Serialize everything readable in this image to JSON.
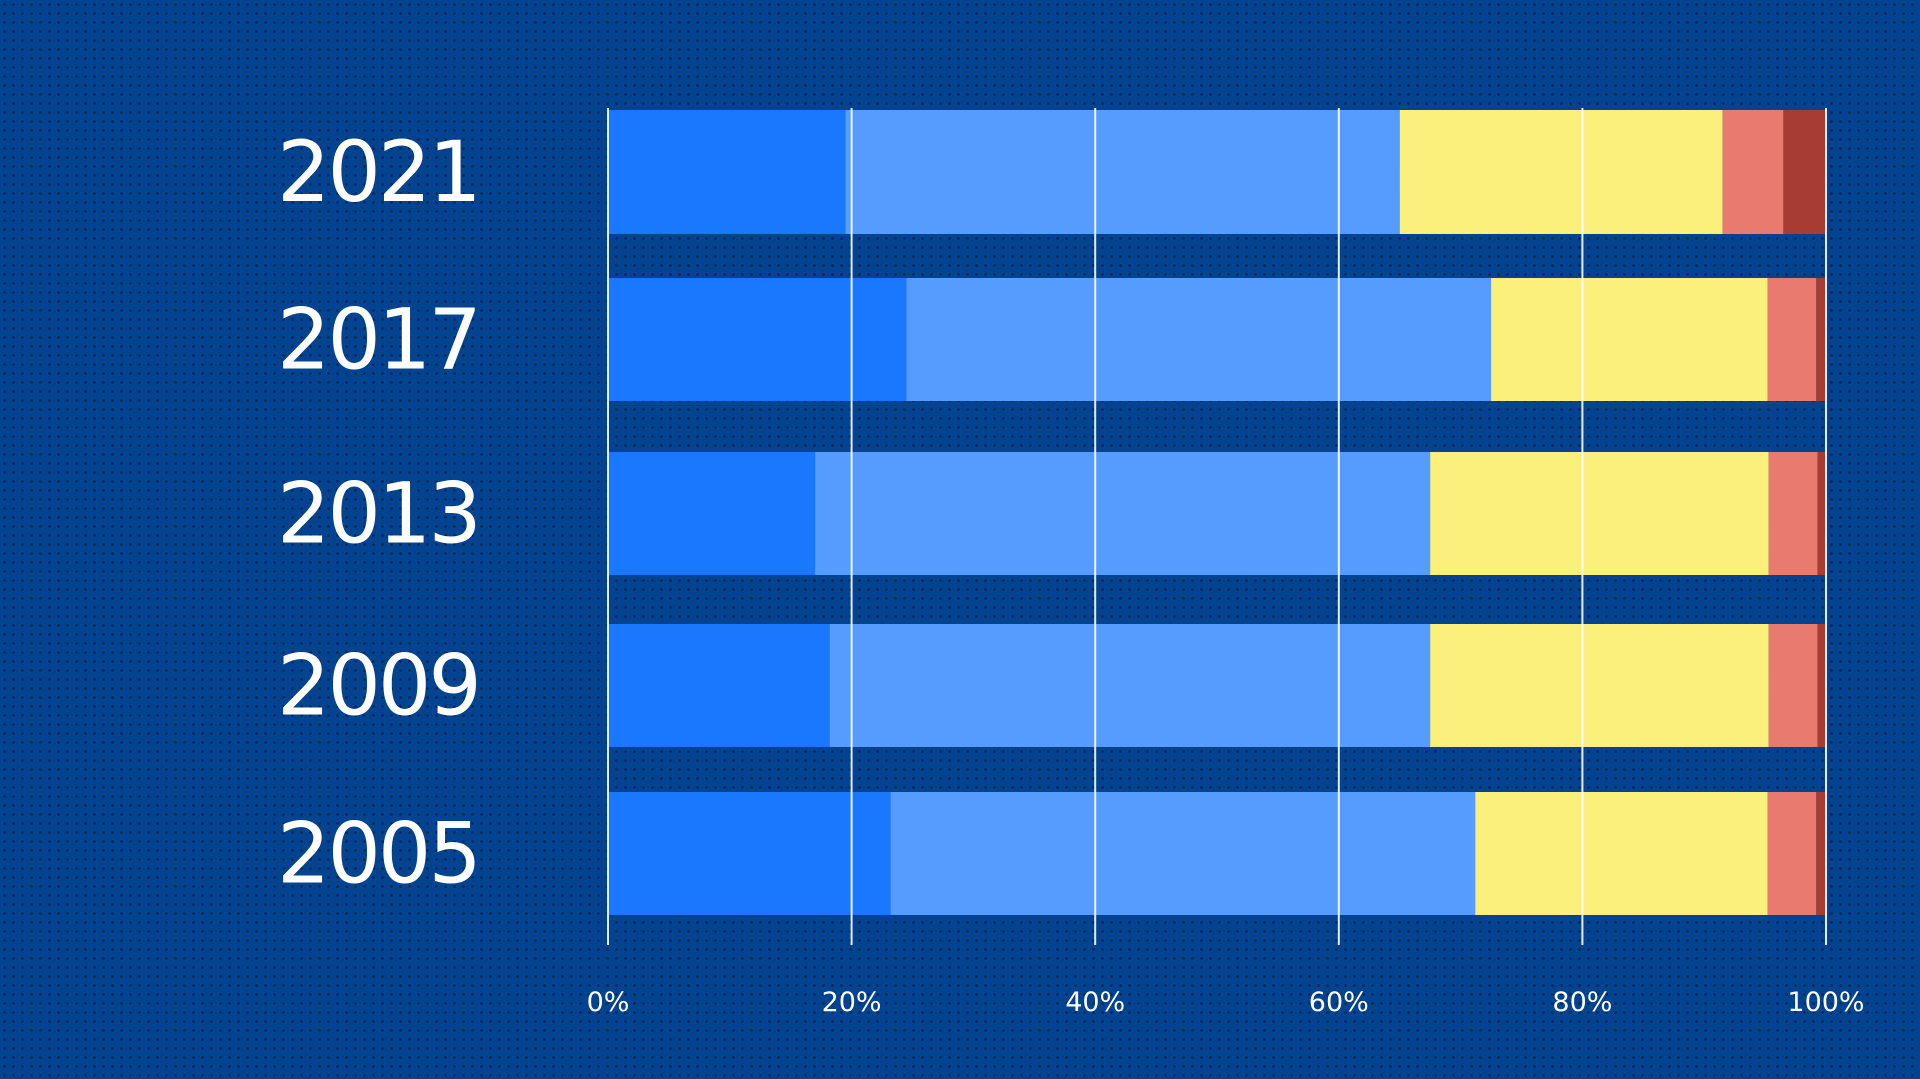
{
  "chart_data": {
    "type": "bar",
    "orientation": "horizontal",
    "stacked": true,
    "normalized": true,
    "categories": [
      "2021",
      "2017",
      "2013",
      "2009",
      "2005"
    ],
    "series": [
      {
        "color": "#1a78fe",
        "values": [
          19.5,
          24.5,
          17,
          18.2,
          23.2
        ]
      },
      {
        "color": "#569bfe",
        "values": [
          45.5,
          48,
          50.5,
          49.3,
          48
        ]
      },
      {
        "color": "#fcf07d",
        "values": [
          26.5,
          22.7,
          27.8,
          27.8,
          24
        ]
      },
      {
        "color": "#e87a70",
        "values": [
          5,
          4,
          4,
          4,
          4
        ]
      },
      {
        "color": "#a73c33",
        "values": [
          3.5,
          0.8,
          0.7,
          0.7,
          0.8
        ]
      }
    ],
    "xlim": [
      0,
      100
    ],
    "xticks": [
      "0%",
      "20%",
      "40%",
      "60%",
      "80%",
      "100%"
    ],
    "grid": true,
    "legend": "none"
  }
}
